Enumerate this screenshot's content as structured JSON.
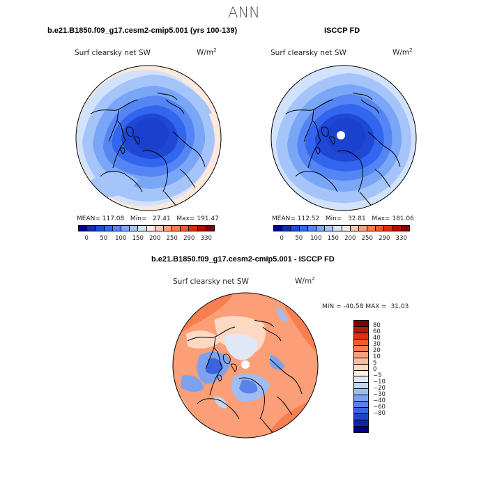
{
  "page_title": "ANN",
  "chart_data": [
    {
      "type": "heatmap",
      "subtype": "polar-stereographic-map",
      "title": "b.e21.B1850.f09_g17.cesm2-cmip5.001 (yrs 100-139)",
      "variable": "Surf clearsky net SW",
      "units": "W/m",
      "units_exp": "2",
      "stats": {
        "mean_label": "MEAN=",
        "mean": "117.08",
        "min_label": "Min=",
        "min": "27.41",
        "max_label": "Max=",
        "max": "191.47"
      },
      "colorbar": {
        "orientation": "horizontal",
        "colors": [
          "#00008b",
          "#0a2fb0",
          "#1f48d6",
          "#3366ee",
          "#5585f5",
          "#7aa6f8",
          "#a4c4fa",
          "#d3e2fb",
          "#fde9dc",
          "#fcc8ad",
          "#f9a27e",
          "#f57a52",
          "#ee5533",
          "#dd2a12",
          "#b30d00",
          "#7f0000"
        ],
        "tick_labels": [
          "0",
          "50",
          "100",
          "150",
          "200",
          "250",
          "290",
          "330"
        ]
      }
    },
    {
      "type": "heatmap",
      "subtype": "polar-stereographic-map",
      "title": "ISCCP FD",
      "variable": "Surf clearsky net SW",
      "units": "W/m",
      "units_exp": "2",
      "stats": {
        "mean_label": "MEAN=",
        "mean": "112.52",
        "min_label": "Min=",
        "min": "32.81",
        "max_label": "Max=",
        "max": "181.06"
      },
      "colorbar": {
        "orientation": "horizontal",
        "colors": [
          "#00008b",
          "#0a2fb0",
          "#1f48d6",
          "#3366ee",
          "#5585f5",
          "#7aa6f8",
          "#a4c4fa",
          "#d3e2fb",
          "#fde9dc",
          "#fcc8ad",
          "#f9a27e",
          "#f57a52",
          "#ee5533",
          "#dd2a12",
          "#b30d00",
          "#7f0000"
        ],
        "tick_labels": [
          "0",
          "50",
          "100",
          "150",
          "200",
          "250",
          "290",
          "330"
        ]
      }
    },
    {
      "type": "heatmap",
      "subtype": "polar-stereographic-map",
      "title": "b.e21.B1850.f09_g17.cesm2-cmip5.001 - ISCCP FD",
      "variable": "Surf clearsky net SW",
      "units": "W/m",
      "units_exp": "2",
      "stats": {
        "min_label": "MIN =",
        "min": "-40.58",
        "max_label": "MAX =",
        "max": "31.03"
      },
      "colorbar": {
        "orientation": "vertical",
        "colors": [
          "#7f0000",
          "#b81a00",
          "#e0300f",
          "#f55a2e",
          "#f97e50",
          "#fb9f78",
          "#fdbd9e",
          "#fdd8c2",
          "#fdece0",
          "#e0e8f8",
          "#c3d5f5",
          "#9fbdf2",
          "#7ca2ee",
          "#5883e8",
          "#3a63de",
          "#2042c8",
          "#1024a4",
          "#000080"
        ],
        "tick_labels": [
          "80",
          "60",
          "40",
          "30",
          "20",
          "10",
          "5",
          "0",
          "−5",
          "−10",
          "−20",
          "−30",
          "−40",
          "−60",
          "−80"
        ]
      }
    }
  ]
}
